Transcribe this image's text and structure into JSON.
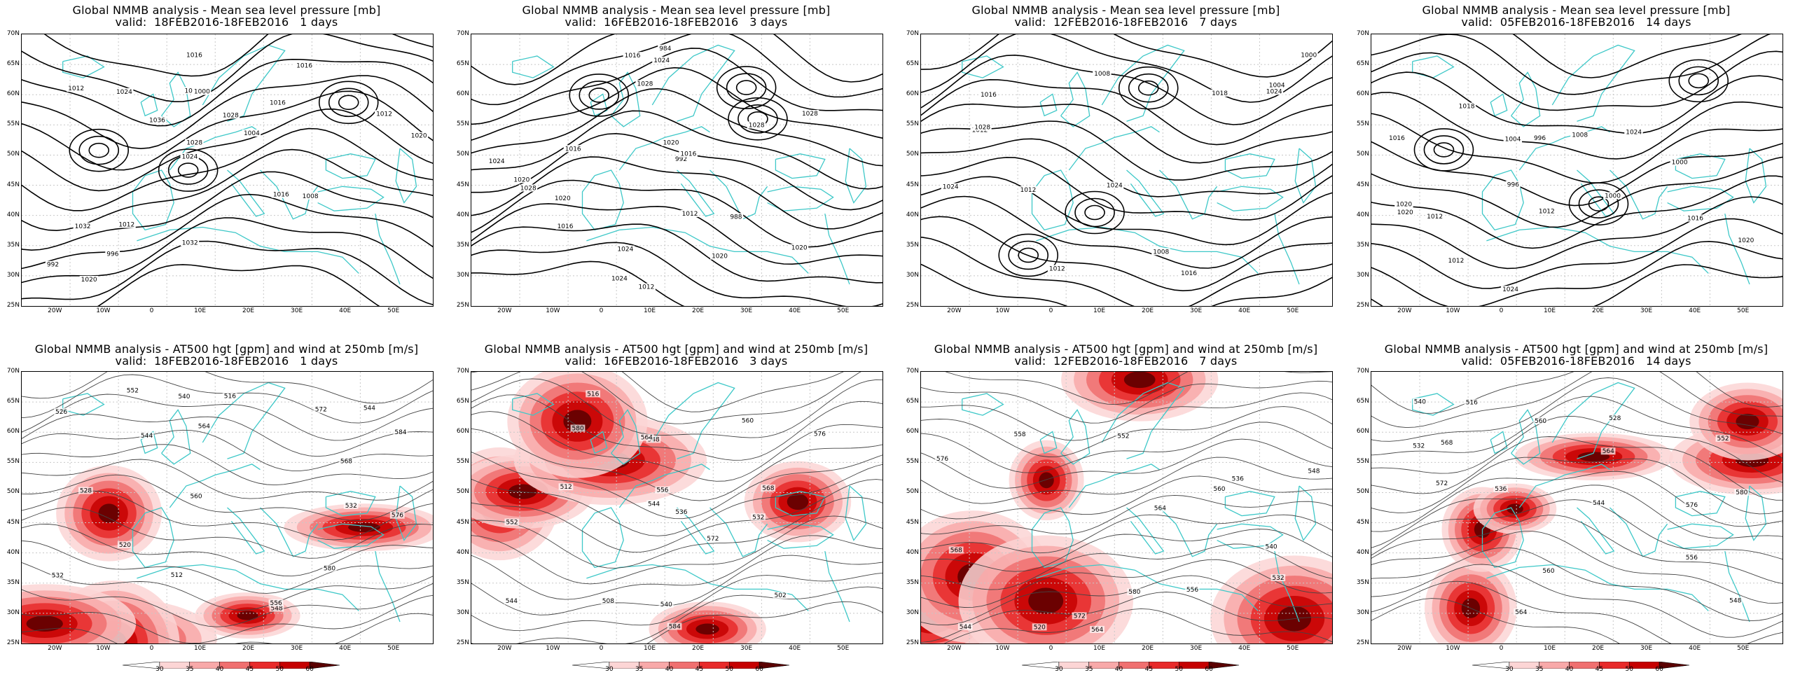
{
  "panels": [
    {
      "title": "Global NMMB analysis - Mean sea level pressure [mb]",
      "valid": "valid:  18FEB2016-18FEB2016   1 days",
      "labels": [
        "1016",
        "1020",
        "1024",
        "1028",
        "1032",
        "1036",
        "992",
        "996",
        "1000",
        "1004",
        "1008",
        "1012",
        "1016",
        "1020",
        "1016",
        "1012",
        "1024",
        "1032",
        "1028",
        "1024",
        "1016",
        "1012"
      ]
    },
    {
      "title": "Global NMMB analysis - Mean sea level pressure [mb]",
      "valid": "valid:  16FEB2016-18FEB2016   3 days",
      "labels": [
        "1012",
        "1016",
        "1020",
        "1024",
        "1028",
        "1028",
        "1020",
        "984",
        "988",
        "992",
        "1012",
        "1016",
        "1020",
        "1024",
        "1016",
        "1024",
        "1020",
        "1024",
        "1028",
        "1016",
        "1020",
        "1024",
        "1028"
      ]
    },
    {
      "title": "Global NMMB analysis - Mean sea level pressure [mb]",
      "valid": "valid:  12FEB2016-18FEB2016   7 days",
      "labels": [
        "1008",
        "1012",
        "1000",
        "1004",
        "1008",
        "1012",
        "1016",
        "1018",
        "1024",
        "1024",
        "1028",
        "1016",
        "1012",
        "1024"
      ]
    },
    {
      "title": "Global NMMB analysis - Mean sea level pressure [mb]",
      "valid": "valid:  05FEB2016-18FEB2016   14 days",
      "labels": [
        "996",
        "996",
        "1000",
        "1000",
        "1004",
        "1008",
        "1012",
        "1016",
        "1012",
        "1012",
        "1016",
        "1020",
        "1024",
        "1020",
        "1024",
        "1018",
        "1020"
      ]
    },
    {
      "title": "Global NMMB analysis - AT500 hgt [gpm] and wind at 250mb [m/s]",
      "valid": "valid:  18FEB2016-18FEB2016   1 days",
      "labels": [
        "512",
        "516",
        "520",
        "526",
        "532",
        "544",
        "548",
        "552",
        "556",
        "560",
        "564",
        "568",
        "572",
        "576",
        "580",
        "584",
        "528",
        "532",
        "540",
        "544"
      ]
    },
    {
      "title": "Global NMMB analysis - AT500 hgt [gpm] and wind at 250mb [m/s]",
      "valid": "valid:  16FEB2016-18FEB2016   3 days",
      "labels": [
        "508",
        "512",
        "536",
        "540",
        "544",
        "548",
        "552",
        "556",
        "560",
        "564",
        "568",
        "572",
        "576",
        "580",
        "584",
        "502",
        "516",
        "532",
        "544"
      ]
    },
    {
      "title": "Global NMMB analysis - AT500 hgt [gpm] and wind at 250mb [m/s]",
      "valid": "valid:  12FEB2016-18FEB2016   7 days",
      "labels": [
        "520",
        "532",
        "536",
        "540",
        "544",
        "548",
        "552",
        "556",
        "560",
        "564",
        "568",
        "572",
        "576",
        "580",
        "558",
        "564"
      ]
    },
    {
      "title": "Global NMMB analysis - AT500 hgt [gpm] and wind at 250mb [m/s]",
      "valid": "valid:  05FEB2016-18FEB2016   14 days",
      "labels": [
        "516",
        "528",
        "532",
        "536",
        "540",
        "544",
        "548",
        "552",
        "556",
        "560",
        "564",
        "568",
        "572",
        "576",
        "580",
        "560",
        "564"
      ]
    }
  ],
  "lat_labels": [
    "70N",
    "65N",
    "60N",
    "55N",
    "50N",
    "45N",
    "40N",
    "35N",
    "30N",
    "25N"
  ],
  "lon_labels": [
    "20W",
    "10W",
    "0",
    "10E",
    "20E",
    "30E",
    "40E",
    "50E"
  ],
  "colorbar": {
    "ticks": [
      "30",
      "35",
      "40",
      "45",
      "50",
      "60"
    ],
    "colors": [
      "#ffffff",
      "#fcd5d5",
      "#f8a9a9",
      "#f07070",
      "#e82a2a",
      "#c60000",
      "#5a0000"
    ]
  },
  "colors": {
    "coast": "#3ec8c8",
    "contour": "#000000",
    "grid": "#c8c8c8"
  }
}
